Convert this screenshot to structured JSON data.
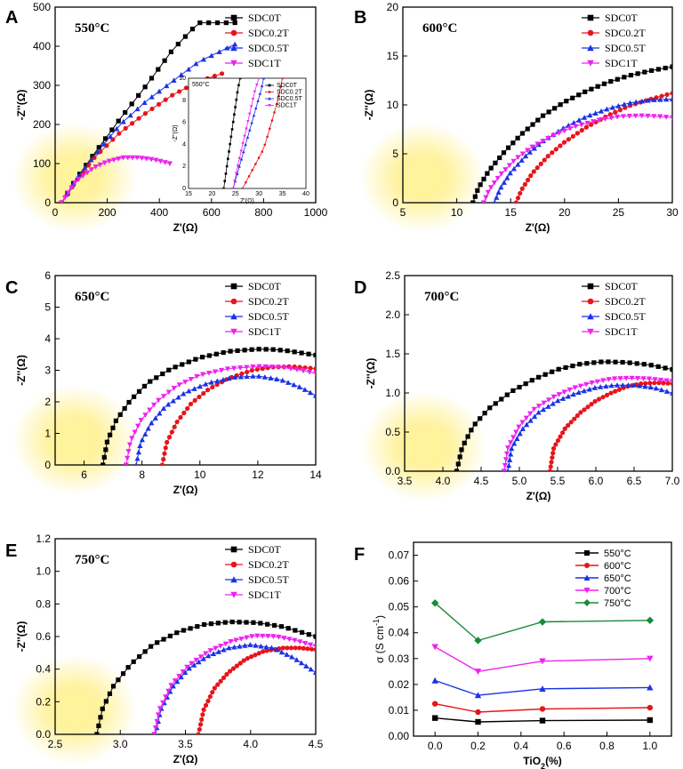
{
  "chart_data": [
    {
      "type": "scatter",
      "panel": "A",
      "annotation": "550°C",
      "xlabel": "Z'(Ω)",
      "ylabel": "-Z''(Ω)",
      "xlim": [
        0,
        1000
      ],
      "ylim": [
        0,
        500
      ],
      "xticks": [
        0,
        200,
        400,
        600,
        800,
        1000
      ],
      "yticks": [
        0,
        100,
        200,
        300,
        400,
        500
      ],
      "legend_position": "top-right",
      "series": [
        {
          "name": "SDC0T",
          "x": [
            25,
            80,
            150,
            250,
            350,
            450,
            550,
            690
          ],
          "y": [
            0,
            60,
            125,
            215,
            300,
            390,
            460,
            460
          ]
        },
        {
          "name": "SDC0.2T",
          "x": [
            25,
            80,
            150,
            250,
            350,
            450,
            550,
            640
          ],
          "y": [
            0,
            55,
            115,
            180,
            230,
            275,
            310,
            330
          ]
        },
        {
          "name": "SDC0.5T",
          "x": [
            25,
            80,
            150,
            250,
            350,
            450,
            550,
            690
          ],
          "y": [
            0,
            60,
            120,
            200,
            260,
            310,
            360,
            405
          ]
        },
        {
          "name": "SDC1T",
          "x": [
            25,
            80,
            150,
            200,
            260,
            320,
            380,
            440
          ],
          "y": [
            0,
            55,
            90,
            105,
            115,
            115,
            110,
            100
          ]
        }
      ],
      "inset": {
        "annotation": "550°C",
        "xlabel": "Z'(Ω)",
        "ylabel": "-Z''(Ω)",
        "xlim": [
          15,
          40
        ],
        "ylim": [
          0,
          10
        ],
        "xticks": [
          15,
          20,
          25,
          30,
          35,
          40
        ],
        "yticks": [
          0,
          2,
          4,
          6,
          8,
          10
        ],
        "series": [
          {
            "name": "SDC0T",
            "x": [
              22.5,
              23,
              23.5,
              24,
              24.5,
              25,
              25.5,
              26
            ],
            "y": [
              0,
              1.5,
              3,
              4.5,
              6,
              7.5,
              9,
              10
            ]
          },
          {
            "name": "SDC0.2T",
            "x": [
              26.5,
              28,
              29.5,
              31,
              32,
              33,
              34,
              35
            ],
            "y": [
              0,
              1.2,
              2.4,
              3.6,
              5,
              6.5,
              8,
              10
            ]
          },
          {
            "name": "SDC0.5T",
            "x": [
              24.5,
              25.5,
              26.5,
              27.5,
              28.5,
              29.5,
              30.5,
              31
            ],
            "y": [
              0,
              1.5,
              3,
              4.5,
              6,
              7.5,
              9,
              10
            ]
          },
          {
            "name": "SDC1T",
            "x": [
              24.5,
              25.2,
              26,
              26.8,
              27.6,
              28.4,
              29.2,
              30
            ],
            "y": [
              0,
              1.5,
              3,
              4.5,
              6,
              7.5,
              9,
              10
            ]
          }
        ]
      }
    },
    {
      "type": "scatter",
      "panel": "B",
      "annotation": "600°C",
      "xlabel": "Z'(Ω)",
      "ylabel": "-Z''(Ω)",
      "xlim": [
        5,
        30
      ],
      "ylim": [
        0,
        20
      ],
      "xticks": [
        5,
        10,
        15,
        20,
        25,
        30
      ],
      "yticks": [
        0,
        5,
        10,
        15,
        20
      ],
      "legend_position": "top-right",
      "series": [
        {
          "name": "SDC0T",
          "x": [
            11.5,
            12,
            13,
            14.5,
            16,
            18,
            20,
            22,
            24,
            26,
            28,
            30
          ],
          "y": [
            0,
            1.5,
            3.3,
            5.3,
            7,
            8.9,
            10.3,
            11.4,
            12.3,
            13,
            13.5,
            13.9
          ]
        },
        {
          "name": "SDC0.2T",
          "x": [
            15.5,
            16,
            17,
            18.5,
            20,
            22,
            24,
            26,
            28,
            30
          ],
          "y": [
            0,
            1.3,
            3,
            4.8,
            6.2,
            7.7,
            8.9,
            9.9,
            10.6,
            11.2
          ]
        },
        {
          "name": "SDC0.5T",
          "x": [
            13.5,
            14,
            15,
            16.5,
            18,
            20,
            22,
            24,
            26,
            28,
            30
          ],
          "y": [
            0,
            1.4,
            3.1,
            4.9,
            6.3,
            7.7,
            8.8,
            9.6,
            10.2,
            10.5,
            10.6
          ]
        },
        {
          "name": "SDC1T",
          "x": [
            12.5,
            13,
            14,
            15.5,
            17,
            19,
            21,
            23,
            25,
            27,
            29,
            30
          ],
          "y": [
            0,
            1.3,
            2.8,
            4.5,
            5.7,
            6.9,
            7.8,
            8.4,
            8.8,
            8.9,
            8.8,
            8.7
          ]
        }
      ]
    },
    {
      "type": "scatter",
      "panel": "C",
      "annotation": "650°C",
      "xlabel": "Z'(Ω)",
      "ylabel": "-Z''(Ω)",
      "xlim": [
        5,
        14
      ],
      "ylim": [
        0,
        6
      ],
      "xticks": [
        6,
        8,
        10,
        12,
        14
      ],
      "yticks": [
        0,
        1,
        2,
        3,
        4,
        5,
        6
      ],
      "legend_position": "top-right",
      "series": [
        {
          "name": "SDC0T",
          "x": [
            6.65,
            6.8,
            7.1,
            7.6,
            8.2,
            9,
            10,
            11,
            12,
            12.5,
            13,
            14
          ],
          "y": [
            0,
            0.75,
            1.4,
            2.05,
            2.6,
            3.05,
            3.4,
            3.6,
            3.67,
            3.66,
            3.62,
            3.48
          ]
        },
        {
          "name": "SDC0.2T",
          "x": [
            8.7,
            8.85,
            9.2,
            9.7,
            10.3,
            11,
            11.8,
            12.5,
            13.2,
            14
          ],
          "y": [
            0,
            0.7,
            1.35,
            1.95,
            2.4,
            2.75,
            3.0,
            3.1,
            3.12,
            3.05
          ]
        },
        {
          "name": "SDC0.5T",
          "x": [
            7.8,
            7.95,
            8.3,
            8.8,
            9.5,
            10.3,
            11.2,
            12,
            12.8,
            13.5,
            14
          ],
          "y": [
            0,
            0.7,
            1.3,
            1.85,
            2.3,
            2.6,
            2.78,
            2.82,
            2.7,
            2.45,
            2.2
          ]
        },
        {
          "name": "SDC1T",
          "x": [
            7.45,
            7.6,
            7.95,
            8.5,
            9.2,
            10,
            11,
            12,
            12.8,
            13.5,
            14
          ],
          "y": [
            0,
            0.75,
            1.4,
            2.0,
            2.5,
            2.85,
            3.05,
            3.12,
            3.1,
            3.0,
            2.9
          ]
        }
      ]
    },
    {
      "type": "scatter",
      "panel": "D",
      "annotation": "700°C",
      "xlabel": "Z'(Ω)",
      "ylabel": "-Z''(Ω)",
      "xlim": [
        3.5,
        7.0
      ],
      "ylim": [
        0,
        2.5
      ],
      "xticks": [
        3.5,
        4.0,
        4.5,
        5.0,
        5.5,
        6.0,
        6.5,
        7.0
      ],
      "yticks": [
        0,
        0.5,
        1.0,
        1.5,
        2.0,
        2.5
      ],
      "legend_position": "top-right",
      "series": [
        {
          "name": "SDC0T",
          "x": [
            4.18,
            4.25,
            4.4,
            4.6,
            4.9,
            5.2,
            5.5,
            5.8,
            6.1,
            6.4,
            6.7,
            7.0
          ],
          "y": [
            0,
            0.3,
            0.58,
            0.8,
            1.02,
            1.18,
            1.3,
            1.37,
            1.4,
            1.39,
            1.36,
            1.3
          ]
        },
        {
          "name": "SDC0.2T",
          "x": [
            5.4,
            5.45,
            5.6,
            5.8,
            6.0,
            6.2,
            6.4,
            6.6,
            6.8,
            7.0
          ],
          "y": [
            0,
            0.3,
            0.55,
            0.75,
            0.9,
            1.0,
            1.08,
            1.12,
            1.13,
            1.12
          ]
        },
        {
          "name": "SDC0.5T",
          "x": [
            4.85,
            4.9,
            5.05,
            5.25,
            5.5,
            5.75,
            6.0,
            6.25,
            6.5,
            6.75,
            7.0
          ],
          "y": [
            0,
            0.3,
            0.55,
            0.75,
            0.9,
            1.0,
            1.07,
            1.1,
            1.1,
            1.07,
            1.0
          ]
        },
        {
          "name": "SDC1T",
          "x": [
            4.8,
            4.85,
            5.0,
            5.2,
            5.45,
            5.7,
            5.95,
            6.2,
            6.45,
            6.7,
            7.0
          ],
          "y": [
            0,
            0.3,
            0.58,
            0.8,
            0.95,
            1.06,
            1.13,
            1.18,
            1.19,
            1.18,
            1.15
          ]
        }
      ]
    },
    {
      "type": "scatter",
      "panel": "E",
      "annotation": "750°C",
      "xlabel": "Z'(Ω)",
      "ylabel": "-Z''(Ω)",
      "xlim": [
        2.5,
        4.5
      ],
      "ylim": [
        0,
        1.2
      ],
      "xticks": [
        2.5,
        3.0,
        3.5,
        4.0,
        4.5
      ],
      "yticks": [
        0,
        0.2,
        0.4,
        0.6,
        0.8,
        1.0,
        1.2
      ],
      "legend_position": "top-right",
      "series": [
        {
          "name": "SDC0T",
          "x": [
            2.82,
            2.86,
            2.95,
            3.08,
            3.25,
            3.45,
            3.65,
            3.85,
            4.05,
            4.25,
            4.5
          ],
          "y": [
            0,
            0.15,
            0.3,
            0.43,
            0.55,
            0.63,
            0.675,
            0.69,
            0.685,
            0.66,
            0.6
          ]
        },
        {
          "name": "SDC0.2T",
          "x": [
            3.6,
            3.64,
            3.72,
            3.83,
            3.96,
            4.1,
            4.25,
            4.38,
            4.5
          ],
          "y": [
            0,
            0.15,
            0.28,
            0.38,
            0.46,
            0.51,
            0.53,
            0.53,
            0.52
          ]
        },
        {
          "name": "SDC0.5T",
          "x": [
            3.27,
            3.31,
            3.4,
            3.52,
            3.67,
            3.83,
            4.0,
            4.17,
            4.33,
            4.5
          ],
          "y": [
            0,
            0.15,
            0.29,
            0.4,
            0.48,
            0.53,
            0.55,
            0.53,
            0.47,
            0.38
          ]
        },
        {
          "name": "SDC1T",
          "x": [
            3.26,
            3.3,
            3.39,
            3.52,
            3.68,
            3.85,
            4.03,
            4.2,
            4.35,
            4.5
          ],
          "y": [
            0,
            0.15,
            0.3,
            0.42,
            0.51,
            0.57,
            0.605,
            0.6,
            0.575,
            0.54
          ]
        }
      ]
    },
    {
      "type": "line",
      "panel": "F",
      "xlabel": "TiO2(%)",
      "ylabel": "σ (S cm-1)",
      "xlim": [
        -0.1,
        1.1
      ],
      "ylim": [
        0,
        0.075
      ],
      "xticks": [
        0.0,
        0.2,
        0.4,
        0.6,
        0.8,
        1.0
      ],
      "yticks": [
        0.0,
        0.01,
        0.02,
        0.03,
        0.04,
        0.05,
        0.06,
        0.07
      ],
      "legend_position": "top-right",
      "x": [
        0.0,
        0.2,
        0.5,
        1.0
      ],
      "series": [
        {
          "name": "550°C",
          "values": [
            0.007,
            0.0055,
            0.006,
            0.0062
          ]
        },
        {
          "name": "600°C",
          "values": [
            0.0125,
            0.0093,
            0.0105,
            0.011
          ]
        },
        {
          "name": "650°C",
          "values": [
            0.0215,
            0.0158,
            0.0183,
            0.0188
          ]
        },
        {
          "name": "700°C",
          "values": [
            0.0345,
            0.025,
            0.029,
            0.03
          ]
        },
        {
          "name": "750°C",
          "values": [
            0.0515,
            0.037,
            0.0442,
            0.0448
          ]
        }
      ]
    }
  ],
  "colors": {
    "series_impedance": [
      "#000000",
      "#e8141a",
      "#1a32e6",
      "#ee22ee"
    ],
    "series_conductivity": [
      "#000000",
      "#e8141a",
      "#1a32e6",
      "#ee22ee",
      "#1a8a3a"
    ],
    "glow": "#ffe95a"
  }
}
